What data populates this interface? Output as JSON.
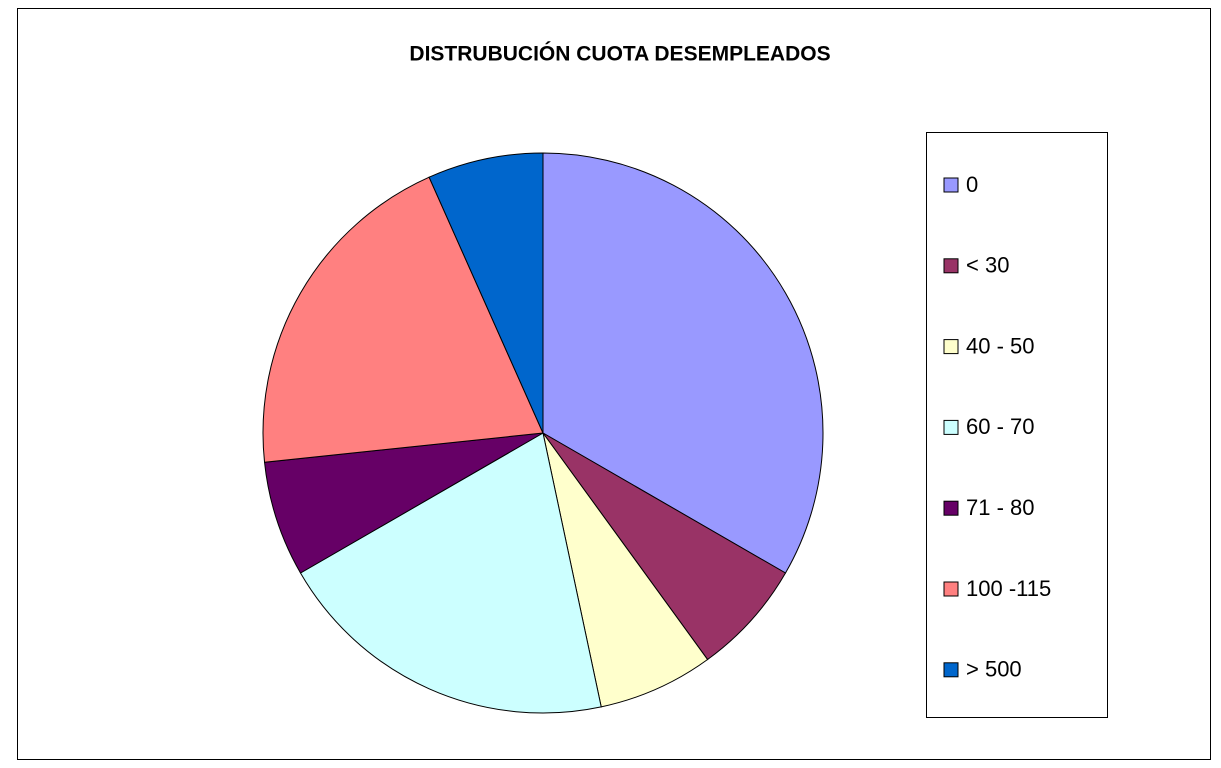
{
  "chart_data": {
    "type": "pie",
    "title": "DISTRUBUCIÓN CUOTA DESEMPLEADOS",
    "categories": [
      "0",
      "< 30",
      "40 - 50",
      "60 - 70",
      "71 - 80",
      "100 -115",
      "> 500"
    ],
    "values": [
      5,
      1,
      1,
      3,
      1,
      3,
      1
    ],
    "colors": [
      "#9999ff",
      "#993366",
      "#ffffcc",
      "#ccffff",
      "#660066",
      "#ff8080",
      "#0066cc"
    ],
    "legend": "right"
  }
}
